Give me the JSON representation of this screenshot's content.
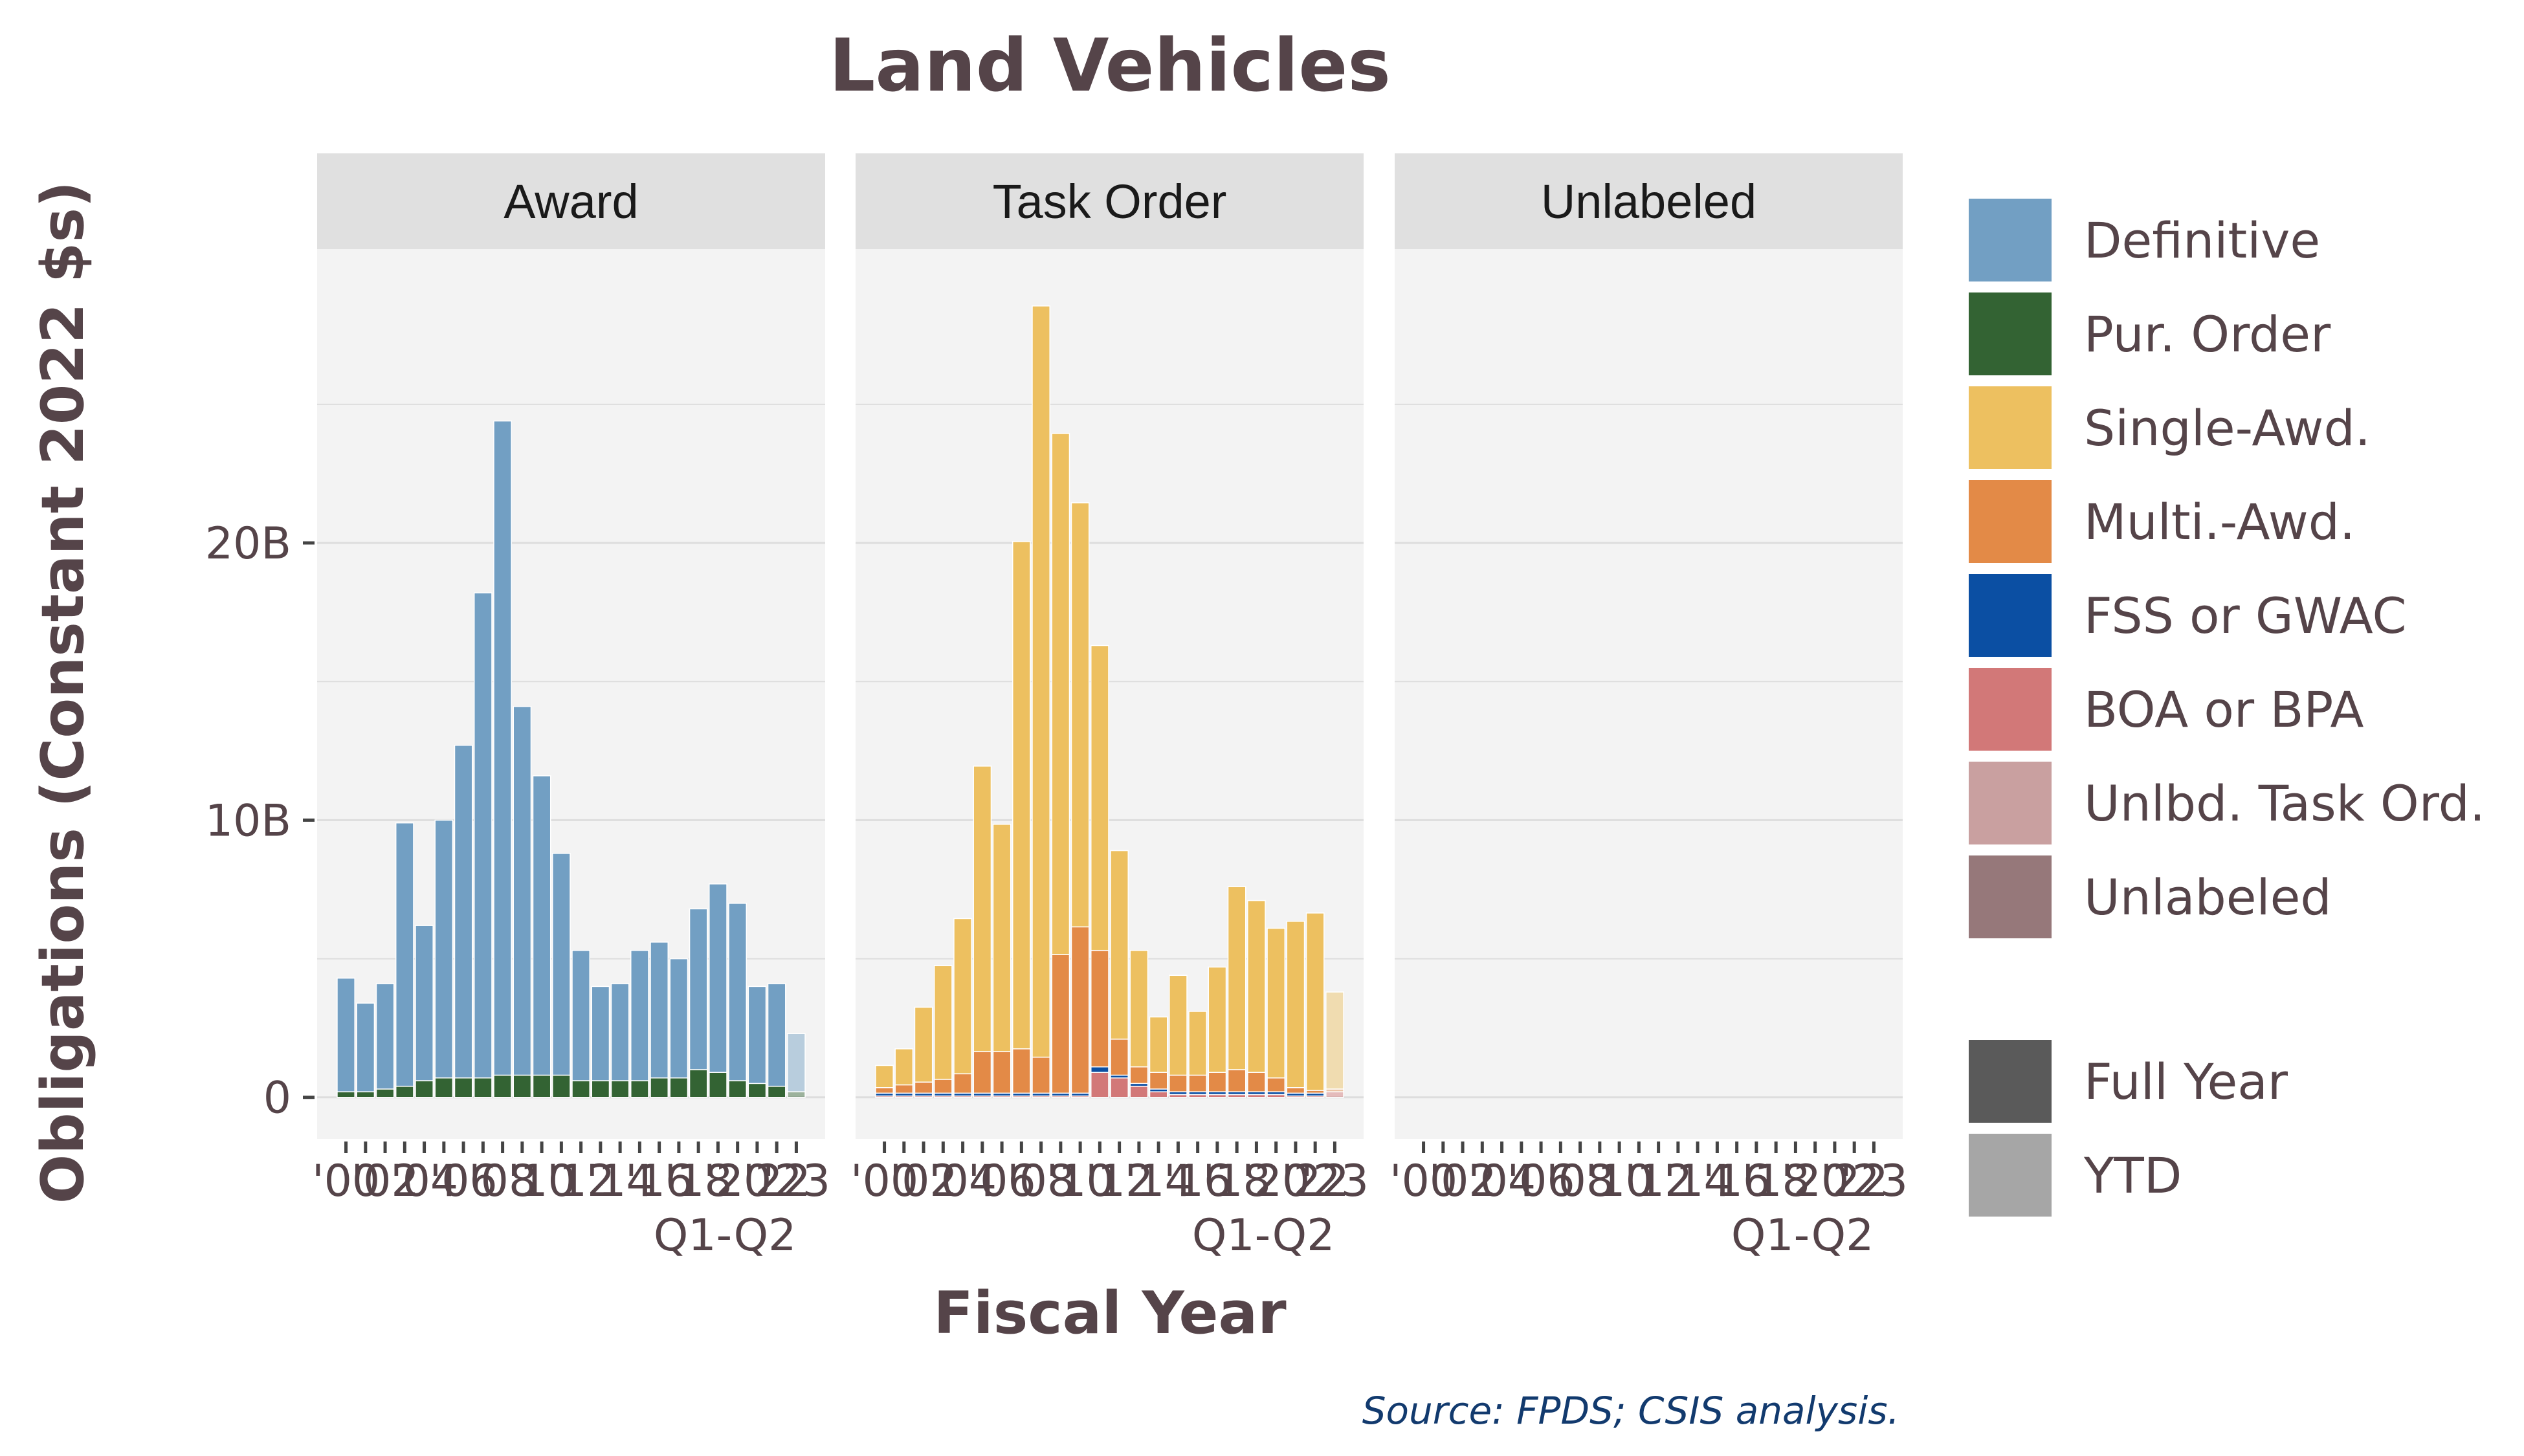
{
  "chart_data": {
    "type": "bar",
    "stacked": true,
    "title": "Land Vehicles",
    "xlabel": "Fiscal Year",
    "ylabel": "Obligations (Constant 2022 $s)",
    "ylim": [
      -1.5,
      30.6
    ],
    "yticks": [
      {
        "value": 0,
        "label": "0"
      },
      {
        "value": 10,
        "label": "10B"
      },
      {
        "value": 20,
        "label": "20B"
      }
    ],
    "grid": true,
    "legend_position": "right",
    "caption": "Source: FPDS; CSIS analysis.",
    "x": [
      "2000",
      "2001",
      "2002",
      "2003",
      "2004",
      "2005",
      "2006",
      "2007",
      "2008",
      "2009",
      "2010",
      "2011",
      "2012",
      "2013",
      "2014",
      "2015",
      "2016",
      "2017",
      "2018",
      "2019",
      "2020",
      "2021",
      "2022",
      "2023"
    ],
    "x_tick_labels": [
      "'00",
      "'02",
      "'04",
      "'06",
      "'08",
      "'10",
      "'12",
      "'14",
      "'16",
      "'18",
      "'20",
      "'22",
      "'23"
    ],
    "x_tick_label_years": [
      "2000",
      "2002",
      "2004",
      "2006",
      "2008",
      "2010",
      "2012",
      "2014",
      "2016",
      "2018",
      "2020",
      "2022",
      "2023"
    ],
    "x_last_sublabel": "Q1-Q2",
    "period_type": [
      "Full Year",
      "Full Year",
      "Full Year",
      "Full Year",
      "Full Year",
      "Full Year",
      "Full Year",
      "Full Year",
      "Full Year",
      "Full Year",
      "Full Year",
      "Full Year",
      "Full Year",
      "Full Year",
      "Full Year",
      "Full Year",
      "Full Year",
      "Full Year",
      "Full Year",
      "Full Year",
      "Full Year",
      "Full Year",
      "Full Year",
      "YTD"
    ],
    "stack_order": [
      "Unlabeled",
      "Unlbd. Task Ord.",
      "BOA or BPA",
      "FSS or GWAC",
      "Pur. Order",
      "Multi.-Awd.",
      "Single-Awd.",
      "Definitive"
    ],
    "categories": [
      {
        "name": "Definitive",
        "color": "#729fc3"
      },
      {
        "name": "Pur. Order",
        "color": "#336333"
      },
      {
        "name": "Single-Awd.",
        "color": "#edc060"
      },
      {
        "name": "Multi.-Awd.",
        "color": "#e38a47"
      },
      {
        "name": "FSS or GWAC",
        "color": "#0b4fa3"
      },
      {
        "name": "BOA or BPA",
        "color": "#d27878"
      },
      {
        "name": "Unlbd. Task Ord.",
        "color": "#c9a0a0"
      },
      {
        "name": "Unlabeled",
        "color": "#96787a"
      }
    ],
    "period_legend": [
      {
        "name": "Full Year",
        "color": "#5a5a5a"
      },
      {
        "name": "YTD",
        "color": "#a6a6a6"
      }
    ],
    "panels": [
      {
        "strip": "Award",
        "series": [
          {
            "name": "Definitive",
            "values": [
              4.1,
              3.2,
              3.8,
              9.5,
              5.6,
              9.3,
              12.0,
              17.5,
              23.6,
              13.3,
              10.8,
              8.0,
              4.7,
              3.4,
              3.5,
              4.7,
              4.9,
              4.3,
              5.8,
              6.8,
              6.4,
              3.5,
              3.7,
              2.1
            ]
          },
          {
            "name": "Pur. Order",
            "values": [
              0.2,
              0.2,
              0.3,
              0.4,
              0.6,
              0.7,
              0.7,
              0.7,
              0.8,
              0.8,
              0.8,
              0.8,
              0.6,
              0.6,
              0.6,
              0.6,
              0.7,
              0.7,
              1.0,
              0.9,
              0.6,
              0.5,
              0.4,
              0.2
            ]
          }
        ]
      },
      {
        "strip": "Task Order",
        "series": [
          {
            "name": "FSS or GWAC",
            "values": [
              0.1,
              0.1,
              0.1,
              0.1,
              0.1,
              0.1,
              0.1,
              0.1,
              0.1,
              0.1,
              0.1,
              0.2,
              0.1,
              0.1,
              0.1,
              0.1,
              0.1,
              0.1,
              0.1,
              0.1,
              0.1,
              0.1,
              0.1,
              0.0
            ]
          },
          {
            "name": "BOA or BPA",
            "values": [
              0.05,
              0.05,
              0.05,
              0.05,
              0.05,
              0.05,
              0.05,
              0.05,
              0.05,
              0.05,
              0.05,
              0.9,
              0.7,
              0.4,
              0.2,
              0.1,
              0.1,
              0.1,
              0.1,
              0.1,
              0.1,
              0.05,
              0.05,
              0.2
            ]
          },
          {
            "name": "Multi.-Awd.",
            "values": [
              0.2,
              0.3,
              0.4,
              0.5,
              0.7,
              1.5,
              1.5,
              1.6,
              1.3,
              5.0,
              6.0,
              4.2,
              1.3,
              0.6,
              0.6,
              0.6,
              0.6,
              0.7,
              0.8,
              0.7,
              0.5,
              0.2,
              0.1,
              0.1
            ]
          },
          {
            "name": "Single-Awd.",
            "values": [
              0.8,
              1.3,
              2.7,
              4.1,
              5.6,
              10.3,
              8.2,
              18.3,
              27.1,
              18.8,
              15.3,
              11.0,
              6.8,
              4.2,
              2.0,
              3.6,
              2.3,
              3.8,
              6.6,
              6.2,
              5.4,
              6.0,
              6.4,
              3.5
            ]
          }
        ]
      },
      {
        "strip": "Unlabeled",
        "series": [
          {
            "name": "Unlabeled",
            "values": [
              0,
              0,
              0,
              0,
              0,
              0,
              0,
              0,
              0,
              0,
              0,
              0,
              0,
              0,
              0,
              0,
              0,
              0,
              0,
              0,
              0,
              0,
              0,
              0
            ]
          }
        ]
      }
    ]
  }
}
